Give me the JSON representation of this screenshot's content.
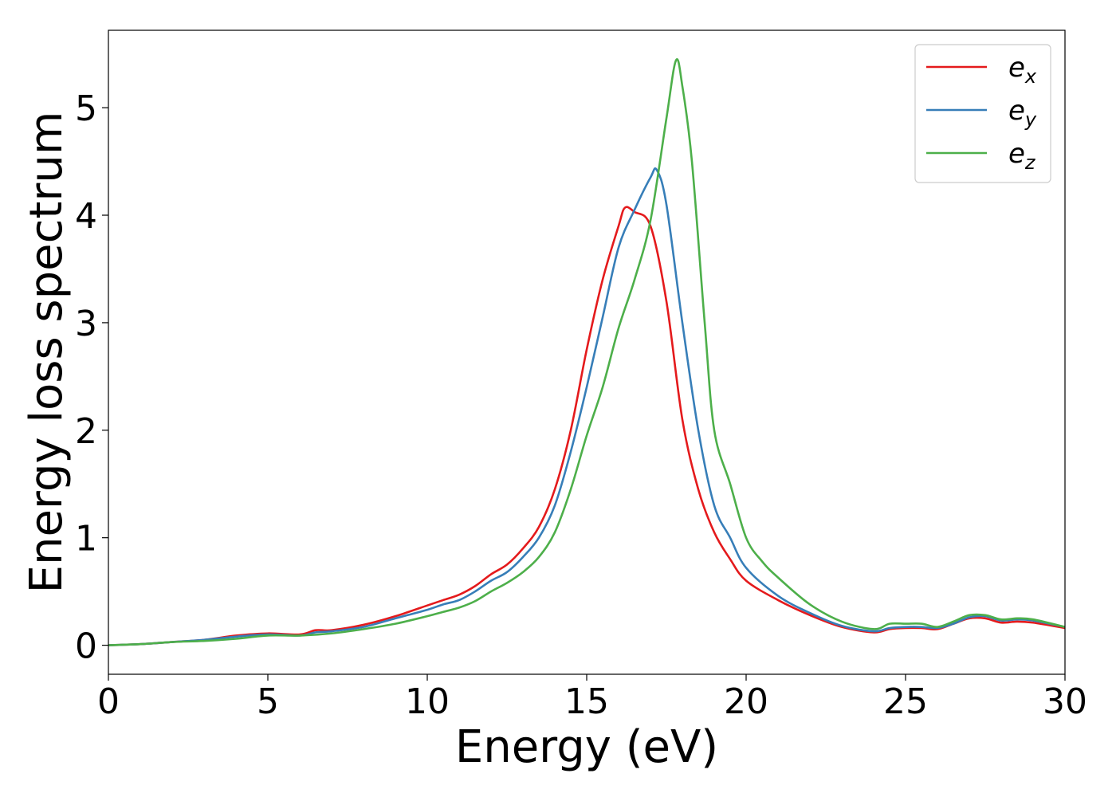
{
  "chart_data": {
    "type": "line",
    "title": "",
    "xlabel": "Energy (eV)",
    "ylabel": "Energy loss spectrum",
    "xlim": [
      0,
      30
    ],
    "ylim": [
      -0.27,
      5.72
    ],
    "xticks": [
      0,
      5,
      10,
      15,
      20,
      25,
      30
    ],
    "yticks": [
      0,
      1,
      2,
      3,
      4,
      5
    ],
    "grid": false,
    "legend_position": "top-right",
    "series": [
      {
        "name": "e_x",
        "legend_base": "e",
        "legend_sub": "x",
        "color": "#e41a1c",
        "points": [
          [
            0,
            0
          ],
          [
            1,
            0.01
          ],
          [
            2,
            0.03
          ],
          [
            3,
            0.05
          ],
          [
            4,
            0.09
          ],
          [
            5,
            0.11
          ],
          [
            6,
            0.1
          ],
          [
            6.5,
            0.14
          ],
          [
            7,
            0.14
          ],
          [
            8,
            0.19
          ],
          [
            9,
            0.27
          ],
          [
            10,
            0.37
          ],
          [
            10.5,
            0.42
          ],
          [
            11,
            0.47
          ],
          [
            11.5,
            0.55
          ],
          [
            12,
            0.66
          ],
          [
            12.5,
            0.75
          ],
          [
            13,
            0.9
          ],
          [
            13.5,
            1.1
          ],
          [
            14,
            1.45
          ],
          [
            14.5,
            2.0
          ],
          [
            15,
            2.75
          ],
          [
            15.5,
            3.4
          ],
          [
            16,
            3.9
          ],
          [
            16.2,
            4.07
          ],
          [
            16.5,
            4.03
          ],
          [
            17,
            3.9
          ],
          [
            17.5,
            3.2
          ],
          [
            18,
            2.1
          ],
          [
            18.5,
            1.45
          ],
          [
            19,
            1.05
          ],
          [
            19.5,
            0.8
          ],
          [
            20,
            0.6
          ],
          [
            21,
            0.42
          ],
          [
            22,
            0.28
          ],
          [
            23,
            0.17
          ],
          [
            24,
            0.12
          ],
          [
            24.5,
            0.15
          ],
          [
            25,
            0.16
          ],
          [
            25.5,
            0.16
          ],
          [
            26,
            0.15
          ],
          [
            26.5,
            0.2
          ],
          [
            27,
            0.25
          ],
          [
            27.5,
            0.25
          ],
          [
            28,
            0.21
          ],
          [
            28.5,
            0.22
          ],
          [
            29,
            0.21
          ],
          [
            30,
            0.16
          ]
        ]
      },
      {
        "name": "e_y",
        "legend_base": "e",
        "legend_sub": "y",
        "color": "#377eb8",
        "points": [
          [
            0,
            0
          ],
          [
            1,
            0.01
          ],
          [
            2,
            0.03
          ],
          [
            3,
            0.05
          ],
          [
            4,
            0.08
          ],
          [
            5,
            0.1
          ],
          [
            6,
            0.09
          ],
          [
            6.5,
            0.12
          ],
          [
            7,
            0.13
          ],
          [
            8,
            0.17
          ],
          [
            9,
            0.25
          ],
          [
            10,
            0.33
          ],
          [
            10.5,
            0.38
          ],
          [
            11,
            0.42
          ],
          [
            11.5,
            0.5
          ],
          [
            12,
            0.6
          ],
          [
            12.5,
            0.68
          ],
          [
            13,
            0.82
          ],
          [
            13.5,
            1.0
          ],
          [
            14,
            1.3
          ],
          [
            14.5,
            1.8
          ],
          [
            15,
            2.4
          ],
          [
            15.5,
            3.05
          ],
          [
            16,
            3.7
          ],
          [
            16.5,
            4.05
          ],
          [
            17,
            4.35
          ],
          [
            17.2,
            4.42
          ],
          [
            17.5,
            4.1
          ],
          [
            18,
            3.0
          ],
          [
            18.5,
            2.0
          ],
          [
            19,
            1.3
          ],
          [
            19.5,
            1.0
          ],
          [
            20,
            0.72
          ],
          [
            21,
            0.46
          ],
          [
            22,
            0.3
          ],
          [
            23,
            0.18
          ],
          [
            24,
            0.13
          ],
          [
            24.5,
            0.16
          ],
          [
            25,
            0.17
          ],
          [
            25.5,
            0.17
          ],
          [
            26,
            0.16
          ],
          [
            26.5,
            0.2
          ],
          [
            27,
            0.26
          ],
          [
            27.5,
            0.27
          ],
          [
            28,
            0.23
          ],
          [
            28.5,
            0.24
          ],
          [
            29,
            0.23
          ],
          [
            30,
            0.17
          ]
        ]
      },
      {
        "name": "e_z",
        "legend_base": "e",
        "legend_sub": "z",
        "color": "#4daf4a",
        "points": [
          [
            0,
            0
          ],
          [
            1,
            0.01
          ],
          [
            2,
            0.03
          ],
          [
            3,
            0.04
          ],
          [
            4,
            0.06
          ],
          [
            5,
            0.09
          ],
          [
            6,
            0.09
          ],
          [
            7,
            0.11
          ],
          [
            8,
            0.15
          ],
          [
            9,
            0.2
          ],
          [
            10,
            0.27
          ],
          [
            10.5,
            0.31
          ],
          [
            11,
            0.35
          ],
          [
            11.5,
            0.41
          ],
          [
            12,
            0.5
          ],
          [
            12.5,
            0.58
          ],
          [
            13,
            0.68
          ],
          [
            13.5,
            0.82
          ],
          [
            14,
            1.05
          ],
          [
            14.5,
            1.45
          ],
          [
            15,
            1.95
          ],
          [
            15.5,
            2.4
          ],
          [
            16,
            2.95
          ],
          [
            16.5,
            3.4
          ],
          [
            17,
            3.95
          ],
          [
            17.5,
            4.9
          ],
          [
            17.8,
            5.44
          ],
          [
            18,
            5.2
          ],
          [
            18.3,
            4.5
          ],
          [
            18.7,
            3.0
          ],
          [
            19,
            2.0
          ],
          [
            19.5,
            1.5
          ],
          [
            20,
            1.0
          ],
          [
            20.5,
            0.78
          ],
          [
            21,
            0.63
          ],
          [
            22,
            0.38
          ],
          [
            23,
            0.22
          ],
          [
            24,
            0.15
          ],
          [
            24.5,
            0.2
          ],
          [
            25,
            0.2
          ],
          [
            25.5,
            0.2
          ],
          [
            26,
            0.17
          ],
          [
            26.5,
            0.22
          ],
          [
            27,
            0.28
          ],
          [
            27.5,
            0.28
          ],
          [
            28,
            0.24
          ],
          [
            28.5,
            0.25
          ],
          [
            29,
            0.24
          ],
          [
            30,
            0.17
          ]
        ]
      }
    ]
  }
}
